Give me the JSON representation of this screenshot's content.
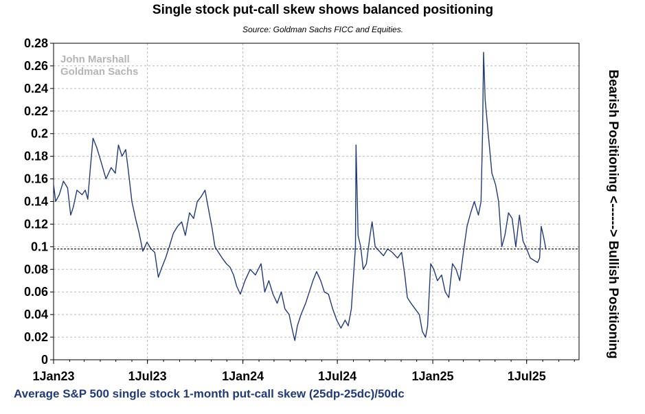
{
  "chart_data": {
    "type": "line",
    "title": "Single stock put-call skew shows balanced positioning",
    "subtitle": "Source: Goldman Sachs FICC and Equities.",
    "watermark": [
      "John Marshall",
      "Goldman Sachs"
    ],
    "right_label": "Bearish Positioning <------> Bullish Positioning",
    "xlabel": "Average S&P 500 single stock 1-month put-call skew (25dp-25dc)/50dc",
    "ylabel": "",
    "ylim": [
      0,
      0.28
    ],
    "y_ticks": [
      "0",
      "0.02",
      "0.04",
      "0.06",
      "0.08",
      "0.1",
      "0.12",
      "0.14",
      "0.16",
      "0.18",
      "0.2",
      "0.22",
      "0.24",
      "0.26",
      "0.28"
    ],
    "x_tick_labels": [
      "1Jan23",
      "1Jul23",
      "1Jan24",
      "1Jul24",
      "1Jan25",
      "1Jul25"
    ],
    "x_tick_dates": [
      "2023-01-01",
      "2023-07-01",
      "2024-01-01",
      "2024-07-01",
      "2025-01-01",
      "2025-07-01"
    ],
    "x_range": [
      "2023-01-01",
      "2025-10-10"
    ],
    "grid": true,
    "reference_line": {
      "y": 0.098,
      "style": "dashed"
    },
    "series": [
      {
        "color": "#1f3a7a",
        "points": [
          [
            "2023-01-01",
            0.155
          ],
          [
            "2023-01-05",
            0.14
          ],
          [
            "2023-01-12",
            0.146
          ],
          [
            "2023-01-20",
            0.158
          ],
          [
            "2023-01-28",
            0.152
          ],
          [
            "2023-02-03",
            0.128
          ],
          [
            "2023-02-08",
            0.135
          ],
          [
            "2023-02-15",
            0.15
          ],
          [
            "2023-02-25",
            0.146
          ],
          [
            "2023-03-03",
            0.15
          ],
          [
            "2023-03-08",
            0.142
          ],
          [
            "2023-03-13",
            0.17
          ],
          [
            "2023-03-18",
            0.196
          ],
          [
            "2023-03-25",
            0.188
          ],
          [
            "2023-04-02",
            0.176
          ],
          [
            "2023-04-12",
            0.16
          ],
          [
            "2023-04-22",
            0.17
          ],
          [
            "2023-04-30",
            0.165
          ],
          [
            "2023-05-06",
            0.19
          ],
          [
            "2023-05-13",
            0.18
          ],
          [
            "2023-05-20",
            0.186
          ],
          [
            "2023-05-25",
            0.168
          ],
          [
            "2023-06-01",
            0.14
          ],
          [
            "2023-06-08",
            0.125
          ],
          [
            "2023-06-15",
            0.112
          ],
          [
            "2023-06-22",
            0.096
          ],
          [
            "2023-06-30",
            0.104
          ],
          [
            "2023-07-08",
            0.098
          ],
          [
            "2023-07-15",
            0.095
          ],
          [
            "2023-07-22",
            0.073
          ],
          [
            "2023-07-29",
            0.082
          ],
          [
            "2023-08-05",
            0.09
          ],
          [
            "2023-08-12",
            0.1
          ],
          [
            "2023-08-20",
            0.112
          ],
          [
            "2023-08-28",
            0.118
          ],
          [
            "2023-09-05",
            0.122
          ],
          [
            "2023-09-12",
            0.11
          ],
          [
            "2023-09-20",
            0.13
          ],
          [
            "2023-09-28",
            0.125
          ],
          [
            "2023-10-05",
            0.14
          ],
          [
            "2023-10-12",
            0.144
          ],
          [
            "2023-10-20",
            0.15
          ],
          [
            "2023-10-26",
            0.135
          ],
          [
            "2023-11-02",
            0.118
          ],
          [
            "2023-11-08",
            0.1
          ],
          [
            "2023-11-15",
            0.095
          ],
          [
            "2023-11-22",
            0.09
          ],
          [
            "2023-11-30",
            0.085
          ],
          [
            "2023-12-07",
            0.082
          ],
          [
            "2023-12-14",
            0.075
          ],
          [
            "2023-12-20",
            0.065
          ],
          [
            "2023-12-27",
            0.058
          ],
          [
            "2024-01-05",
            0.07
          ],
          [
            "2024-01-15",
            0.08
          ],
          [
            "2024-01-25",
            0.075
          ],
          [
            "2024-02-05",
            0.085
          ],
          [
            "2024-02-12",
            0.06
          ],
          [
            "2024-02-20",
            0.07
          ],
          [
            "2024-02-28",
            0.058
          ],
          [
            "2024-03-07",
            0.05
          ],
          [
            "2024-03-15",
            0.06
          ],
          [
            "2024-03-22",
            0.045
          ],
          [
            "2024-03-30",
            0.04
          ],
          [
            "2024-04-06",
            0.025
          ],
          [
            "2024-04-10",
            0.017
          ],
          [
            "2024-04-15",
            0.03
          ],
          [
            "2024-04-22",
            0.04
          ],
          [
            "2024-05-01",
            0.05
          ],
          [
            "2024-05-08",
            0.06
          ],
          [
            "2024-05-15",
            0.07
          ],
          [
            "2024-05-22",
            0.078
          ],
          [
            "2024-05-30",
            0.07
          ],
          [
            "2024-06-06",
            0.06
          ],
          [
            "2024-06-14",
            0.058
          ],
          [
            "2024-06-22",
            0.045
          ],
          [
            "2024-06-30",
            0.035
          ],
          [
            "2024-07-08",
            0.028
          ],
          [
            "2024-07-16",
            0.035
          ],
          [
            "2024-07-22",
            0.03
          ],
          [
            "2024-07-28",
            0.045
          ],
          [
            "2024-08-02",
            0.08
          ],
          [
            "2024-08-05",
            0.1
          ],
          [
            "2024-08-06",
            0.19
          ],
          [
            "2024-08-10",
            0.11
          ],
          [
            "2024-08-15",
            0.1
          ],
          [
            "2024-08-20",
            0.08
          ],
          [
            "2024-08-26",
            0.085
          ],
          [
            "2024-09-02",
            0.11
          ],
          [
            "2024-09-06",
            0.122
          ],
          [
            "2024-09-12",
            0.1
          ],
          [
            "2024-09-20",
            0.096
          ],
          [
            "2024-09-28",
            0.092
          ],
          [
            "2024-10-06",
            0.098
          ],
          [
            "2024-10-15",
            0.095
          ],
          [
            "2024-10-25",
            0.09
          ],
          [
            "2024-11-02",
            0.095
          ],
          [
            "2024-11-08",
            0.075
          ],
          [
            "2024-11-13",
            0.055
          ],
          [
            "2024-11-20",
            0.05
          ],
          [
            "2024-11-28",
            0.045
          ],
          [
            "2024-12-06",
            0.04
          ],
          [
            "2024-12-12",
            0.025
          ],
          [
            "2024-12-18",
            0.02
          ],
          [
            "2024-12-22",
            0.03
          ],
          [
            "2024-12-28",
            0.085
          ],
          [
            "2025-01-03",
            0.08
          ],
          [
            "2025-01-10",
            0.07
          ],
          [
            "2025-01-18",
            0.075
          ],
          [
            "2025-01-25",
            0.06
          ],
          [
            "2025-02-01",
            0.055
          ],
          [
            "2025-02-08",
            0.085
          ],
          [
            "2025-02-15",
            0.08
          ],
          [
            "2025-02-22",
            0.07
          ],
          [
            "2025-03-01",
            0.095
          ],
          [
            "2025-03-08",
            0.118
          ],
          [
            "2025-03-15",
            0.13
          ],
          [
            "2025-03-22",
            0.14
          ],
          [
            "2025-03-30",
            0.128
          ],
          [
            "2025-04-04",
            0.14
          ],
          [
            "2025-04-07",
            0.2
          ],
          [
            "2025-04-09",
            0.272
          ],
          [
            "2025-04-12",
            0.23
          ],
          [
            "2025-04-18",
            0.2
          ],
          [
            "2025-04-25",
            0.165
          ],
          [
            "2025-05-02",
            0.155
          ],
          [
            "2025-05-08",
            0.14
          ],
          [
            "2025-05-14",
            0.1
          ],
          [
            "2025-05-20",
            0.11
          ],
          [
            "2025-05-27",
            0.13
          ],
          [
            "2025-06-03",
            0.125
          ],
          [
            "2025-06-10",
            0.1
          ],
          [
            "2025-06-17",
            0.128
          ],
          [
            "2025-06-24",
            0.105
          ],
          [
            "2025-07-01",
            0.098
          ],
          [
            "2025-07-08",
            0.09
          ],
          [
            "2025-07-15",
            0.088
          ],
          [
            "2025-07-22",
            0.086
          ],
          [
            "2025-07-26",
            0.09
          ],
          [
            "2025-07-29",
            0.118
          ],
          [
            "2025-08-03",
            0.108
          ],
          [
            "2025-08-07",
            0.098
          ]
        ]
      }
    ]
  }
}
